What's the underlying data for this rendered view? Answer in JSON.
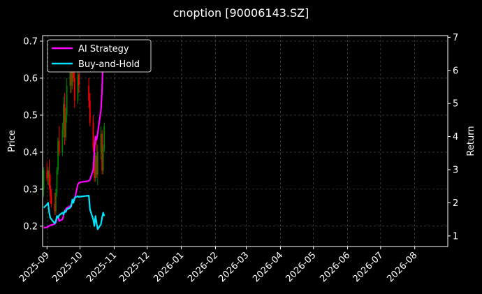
{
  "chart_data": {
    "type": "line",
    "title": "cnoption [90006143.SZ]",
    "xlabel": "",
    "ylabel": "Price",
    "ylabel_right": "Return",
    "x_ticks": [
      "2025-09",
      "2025-10",
      "2025-11",
      "2025-12",
      "2026-01",
      "2026-02",
      "2026-03",
      "2026-04",
      "2026-05",
      "2026-06",
      "2026-07",
      "2026-08"
    ],
    "x_range": [
      "2025-08-28",
      "2026-08-31"
    ],
    "ylim_left": [
      0.145,
      0.715
    ],
    "yticks_left": [
      "0.2",
      "0.3",
      "0.4",
      "0.5",
      "0.6",
      "0.7"
    ],
    "ylim_right": [
      0.68,
      7.05
    ],
    "yticks_right": [
      "1",
      "2",
      "3",
      "4",
      "5",
      "6",
      "7"
    ],
    "grid": true,
    "legend_position": "top-left",
    "colors": {
      "up": "#008000",
      "down": "#ff0000",
      "strategy": "#ff00ff",
      "buyhold": "#00e5ff",
      "background": "#000000",
      "grid": "#555555"
    },
    "series": [
      {
        "name": "AI Strategy",
        "axis": "right",
        "points": [
          [
            "2025-08-29",
            1.25
          ],
          [
            "2025-09-01",
            1.26
          ],
          [
            "2025-09-02",
            1.28
          ],
          [
            "2025-09-03",
            1.3
          ],
          [
            "2025-09-04",
            1.32
          ],
          [
            "2025-09-05",
            1.33
          ],
          [
            "2025-09-08",
            1.36
          ],
          [
            "2025-09-09",
            1.4
          ],
          [
            "2025-09-10",
            1.55
          ],
          [
            "2025-09-11",
            1.6
          ],
          [
            "2025-09-12",
            1.45
          ],
          [
            "2025-09-15",
            1.5
          ],
          [
            "2025-09-16",
            1.62
          ],
          [
            "2025-09-17",
            1.75
          ],
          [
            "2025-09-18",
            1.8
          ],
          [
            "2025-09-19",
            1.85
          ],
          [
            "2025-09-22",
            1.9
          ],
          [
            "2025-09-23",
            1.95
          ],
          [
            "2025-09-24",
            2.05
          ],
          [
            "2025-09-25",
            2.02
          ],
          [
            "2025-09-26",
            2.1
          ],
          [
            "2025-09-29",
            2.55
          ],
          [
            "2025-09-30",
            2.6
          ],
          [
            "2025-10-01",
            2.62
          ],
          [
            "2025-10-09",
            2.66
          ],
          [
            "2025-10-10",
            2.7
          ],
          [
            "2025-10-13",
            3.0
          ],
          [
            "2025-10-14",
            3.6
          ],
          [
            "2025-10-15",
            4.0
          ],
          [
            "2025-10-16",
            3.9
          ],
          [
            "2025-10-17",
            4.1
          ],
          [
            "2025-10-20",
            4.8
          ],
          [
            "2025-10-21",
            5.4
          ],
          [
            "2025-10-22",
            6.5
          ],
          [
            "2025-10-23",
            6.7
          ]
        ]
      },
      {
        "name": "Buy-and-Hold",
        "axis": "right",
        "points": [
          [
            "2025-08-29",
            1.85
          ],
          [
            "2025-09-01",
            1.95
          ],
          [
            "2025-09-02",
            2.0
          ],
          [
            "2025-09-03",
            1.7
          ],
          [
            "2025-09-04",
            1.55
          ],
          [
            "2025-09-05",
            1.5
          ],
          [
            "2025-09-08",
            1.38
          ],
          [
            "2025-09-09",
            1.45
          ],
          [
            "2025-09-10",
            1.6
          ],
          [
            "2025-09-11",
            1.55
          ],
          [
            "2025-09-12",
            1.62
          ],
          [
            "2025-09-15",
            1.7
          ],
          [
            "2025-09-16",
            1.65
          ],
          [
            "2025-09-17",
            1.75
          ],
          [
            "2025-09-18",
            1.72
          ],
          [
            "2025-09-19",
            1.8
          ],
          [
            "2025-09-22",
            1.85
          ],
          [
            "2025-09-23",
            1.9
          ],
          [
            "2025-09-24",
            2.1
          ],
          [
            "2025-09-25",
            2.0
          ],
          [
            "2025-09-26",
            2.15
          ],
          [
            "2025-09-29",
            2.2
          ],
          [
            "2025-09-30",
            2.18
          ],
          [
            "2025-10-09",
            2.22
          ],
          [
            "2025-10-10",
            1.8
          ],
          [
            "2025-10-13",
            1.5
          ],
          [
            "2025-10-14",
            1.3
          ],
          [
            "2025-10-15",
            1.6
          ],
          [
            "2025-10-16",
            1.4
          ],
          [
            "2025-10-17",
            1.2
          ],
          [
            "2025-10-20",
            1.35
          ],
          [
            "2025-10-21",
            1.55
          ],
          [
            "2025-10-22",
            1.7
          ],
          [
            "2025-10-23",
            1.6
          ]
        ]
      },
      {
        "name": "Price",
        "axis": "left",
        "kind": "candlestick",
        "candles": [
          {
            "date": "2025-08-29",
            "o": 0.3,
            "h": 0.36,
            "l": 0.28,
            "c": 0.35
          },
          {
            "date": "2025-09-01",
            "o": 0.35,
            "h": 0.37,
            "l": 0.32,
            "c": 0.33
          },
          {
            "date": "2025-09-02",
            "o": 0.33,
            "h": 0.36,
            "l": 0.31,
            "c": 0.35
          },
          {
            "date": "2025-09-03",
            "o": 0.35,
            "h": 0.38,
            "l": 0.3,
            "c": 0.31
          },
          {
            "date": "2025-09-04",
            "o": 0.31,
            "h": 0.34,
            "l": 0.26,
            "c": 0.28
          },
          {
            "date": "2025-09-05",
            "o": 0.28,
            "h": 0.3,
            "l": 0.25,
            "c": 0.26
          },
          {
            "date": "2025-09-08",
            "o": 0.26,
            "h": 0.29,
            "l": 0.23,
            "c": 0.24
          },
          {
            "date": "2025-09-09",
            "o": 0.24,
            "h": 0.3,
            "l": 0.23,
            "c": 0.29
          },
          {
            "date": "2025-09-10",
            "o": 0.29,
            "h": 0.36,
            "l": 0.28,
            "c": 0.35
          },
          {
            "date": "2025-09-11",
            "o": 0.35,
            "h": 0.44,
            "l": 0.34,
            "c": 0.43
          },
          {
            "date": "2025-09-12",
            "o": 0.43,
            "h": 0.47,
            "l": 0.39,
            "c": 0.4
          },
          {
            "date": "2025-09-15",
            "o": 0.4,
            "h": 0.48,
            "l": 0.39,
            "c": 0.46
          },
          {
            "date": "2025-09-16",
            "o": 0.46,
            "h": 0.55,
            "l": 0.44,
            "c": 0.53
          },
          {
            "date": "2025-09-17",
            "o": 0.53,
            "h": 0.56,
            "l": 0.42,
            "c": 0.44
          },
          {
            "date": "2025-09-18",
            "o": 0.44,
            "h": 0.52,
            "l": 0.43,
            "c": 0.5
          },
          {
            "date": "2025-09-19",
            "o": 0.5,
            "h": 0.6,
            "l": 0.48,
            "c": 0.58
          },
          {
            "date": "2025-09-22",
            "o": 0.58,
            "h": 0.66,
            "l": 0.56,
            "c": 0.64
          },
          {
            "date": "2025-09-23",
            "o": 0.64,
            "h": 0.68,
            "l": 0.56,
            "c": 0.58
          },
          {
            "date": "2025-09-24",
            "o": 0.58,
            "h": 0.67,
            "l": 0.57,
            "c": 0.65
          },
          {
            "date": "2025-09-25",
            "o": 0.65,
            "h": 0.68,
            "l": 0.59,
            "c": 0.6
          },
          {
            "date": "2025-09-26",
            "o": 0.6,
            "h": 0.66,
            "l": 0.52,
            "c": 0.54
          },
          {
            "date": "2025-09-29",
            "o": 0.54,
            "h": 0.63,
            "l": 0.53,
            "c": 0.61
          },
          {
            "date": "2025-09-30",
            "o": 0.61,
            "h": 0.65,
            "l": 0.56,
            "c": 0.58
          },
          {
            "date": "2025-10-09",
            "o": 0.58,
            "h": 0.6,
            "l": 0.52,
            "c": 0.54
          },
          {
            "date": "2025-10-10",
            "o": 0.54,
            "h": 0.56,
            "l": 0.47,
            "c": 0.48
          },
          {
            "date": "2025-10-13",
            "o": 0.48,
            "h": 0.5,
            "l": 0.4,
            "c": 0.41
          },
          {
            "date": "2025-10-14",
            "o": 0.41,
            "h": 0.42,
            "l": 0.32,
            "c": 0.33
          },
          {
            "date": "2025-10-15",
            "o": 0.33,
            "h": 0.4,
            "l": 0.32,
            "c": 0.39
          },
          {
            "date": "2025-10-16",
            "o": 0.39,
            "h": 0.44,
            "l": 0.33,
            "c": 0.34
          },
          {
            "date": "2025-10-17",
            "o": 0.34,
            "h": 0.42,
            "l": 0.31,
            "c": 0.4
          },
          {
            "date": "2025-10-20",
            "o": 0.4,
            "h": 0.47,
            "l": 0.38,
            "c": 0.45
          },
          {
            "date": "2025-10-21",
            "o": 0.45,
            "h": 0.46,
            "l": 0.34,
            "c": 0.35
          },
          {
            "date": "2025-10-22",
            "o": 0.35,
            "h": 0.42,
            "l": 0.34,
            "c": 0.41
          },
          {
            "date": "2025-10-23",
            "o": 0.41,
            "h": 0.48,
            "l": 0.4,
            "c": 0.47
          }
        ]
      }
    ]
  }
}
